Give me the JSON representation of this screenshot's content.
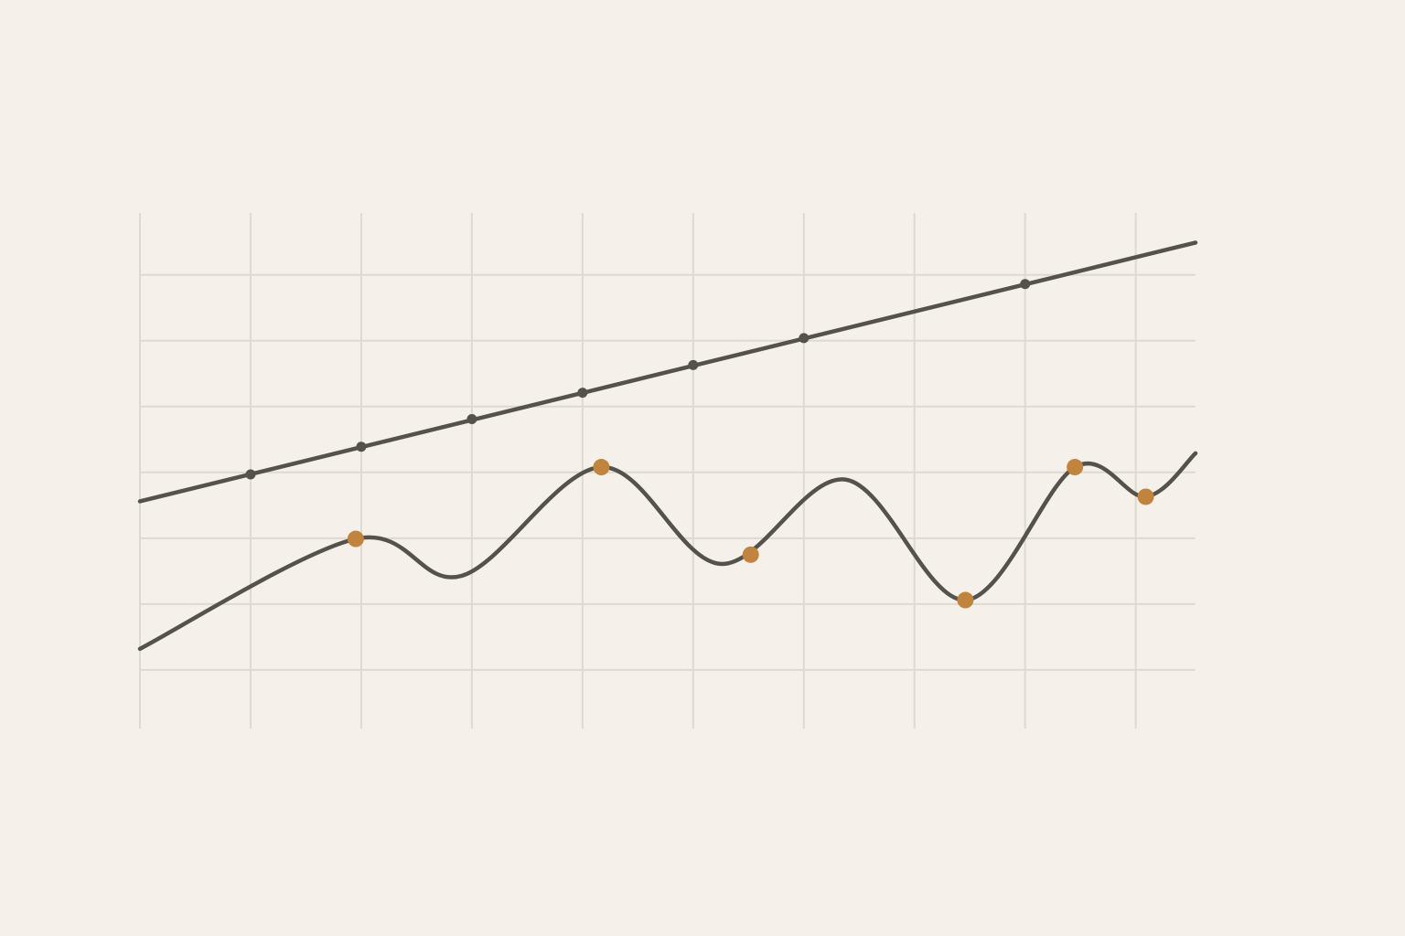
{
  "chart_data": {
    "type": "line",
    "xlim": [
      0,
      9.54
    ],
    "ylim": [
      0.11,
      7.94
    ],
    "xticks": [
      0,
      1,
      2,
      3,
      4,
      5,
      6,
      7,
      8,
      9
    ],
    "yticks": [
      1,
      2,
      3,
      4,
      5,
      6,
      7
    ],
    "grid": true,
    "series": [
      {
        "mode": "lines",
        "color": "#55524c",
        "x": [
          0,
          9.54
        ],
        "values": [
          3.56,
          7.49
        ]
      },
      {
        "mode": "markers",
        "color": "#55524c",
        "x": [
          1,
          2,
          3,
          4,
          5,
          6,
          8
        ],
        "values": [
          3.97,
          4.39,
          4.81,
          5.21,
          5.63,
          6.04,
          6.86
        ]
      },
      {
        "mode": "lines",
        "smooth": true,
        "color": "#55524c",
        "x": [
          0,
          1.95,
          2.91,
          4.17,
          5.25,
          6.38,
          7.46,
          8.45,
          9.09,
          9.54
        ],
        "values": [
          1.32,
          2.99,
          2.43,
          4.08,
          2.61,
          3.89,
          2.06,
          4.08,
          3.63,
          4.29
        ]
      },
      {
        "mode": "markers",
        "color": "#c0843f",
        "x": [
          1.95,
          4.17,
          5.52,
          7.46,
          8.45,
          9.09
        ],
        "values": [
          2.99,
          4.08,
          2.75,
          2.06,
          4.08,
          3.63
        ]
      }
    ]
  }
}
